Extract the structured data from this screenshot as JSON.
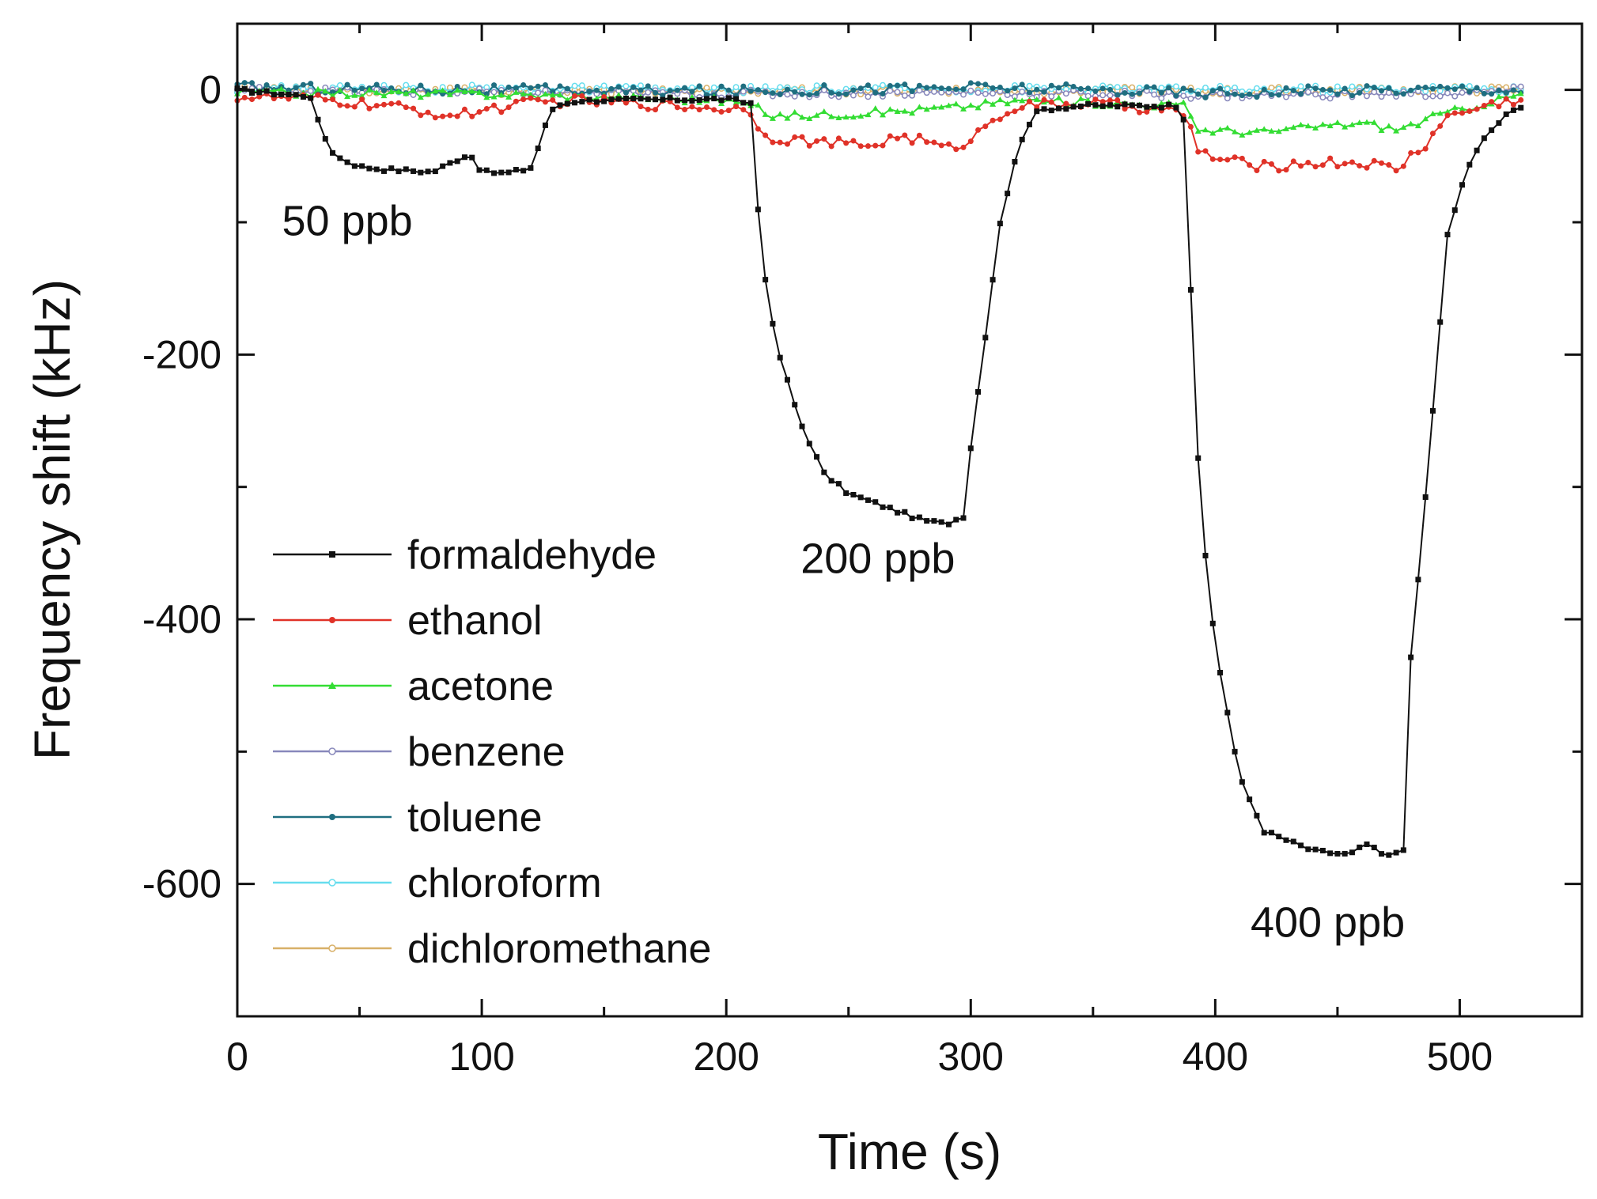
{
  "chart_data": {
    "type": "line",
    "title": "",
    "xlabel": "Time (s)",
    "ylabel": "Frequency shift (kHz)",
    "xlim": [
      0,
      550
    ],
    "ylim": [
      -700,
      50
    ],
    "x_ticks": [
      0,
      100,
      200,
      300,
      400,
      500
    ],
    "x_tick_labels": [
      "0",
      "100",
      "200",
      "300",
      "400",
      "500"
    ],
    "y_ticks": [
      0,
      -200,
      -400,
      -600
    ],
    "y_tick_labels": [
      "0",
      "-200",
      "-400",
      "-600"
    ],
    "grid": false,
    "legend_position": "bottom-left",
    "annotations": [
      {
        "text": "50 ppb",
        "x": 45,
        "y": -110
      },
      {
        "text": "200 ppb",
        "x": 262,
        "y": -365
      },
      {
        "text": "400 ppb",
        "x": 446,
        "y": -640
      }
    ],
    "series": [
      {
        "name": "formaldehyde",
        "color": "#111111",
        "marker": "square",
        "keypoints": [
          [
            0,
            0
          ],
          [
            30,
            -5
          ],
          [
            34,
            -30
          ],
          [
            40,
            -50
          ],
          [
            50,
            -58
          ],
          [
            60,
            -60
          ],
          [
            80,
            -62
          ],
          [
            95,
            -48
          ],
          [
            100,
            -62
          ],
          [
            110,
            -63
          ],
          [
            118,
            -60
          ],
          [
            121,
            -58
          ],
          [
            125,
            -30
          ],
          [
            130,
            -12
          ],
          [
            140,
            -8
          ],
          [
            200,
            -7
          ],
          [
            210,
            -10
          ],
          [
            212,
            -70
          ],
          [
            215,
            -130
          ],
          [
            220,
            -190
          ],
          [
            230,
            -250
          ],
          [
            240,
            -290
          ],
          [
            250,
            -305
          ],
          [
            265,
            -315
          ],
          [
            280,
            -325
          ],
          [
            290,
            -328
          ],
          [
            297,
            -322
          ],
          [
            300,
            -270
          ],
          [
            305,
            -200
          ],
          [
            312,
            -100
          ],
          [
            318,
            -55
          ],
          [
            322,
            -30
          ],
          [
            328,
            -15
          ],
          [
            345,
            -12
          ],
          [
            386,
            -12
          ],
          [
            388,
            -30
          ],
          [
            390,
            -150
          ],
          [
            394,
            -320
          ],
          [
            400,
            -420
          ],
          [
            410,
            -520
          ],
          [
            420,
            -560
          ],
          [
            440,
            -575
          ],
          [
            455,
            -578
          ],
          [
            462,
            -570
          ],
          [
            470,
            -580
          ],
          [
            478,
            -572
          ],
          [
            480,
            -430
          ],
          [
            485,
            -330
          ],
          [
            490,
            -220
          ],
          [
            495,
            -110
          ],
          [
            502,
            -65
          ],
          [
            510,
            -35
          ],
          [
            520,
            -18
          ],
          [
            527,
            -10
          ]
        ]
      },
      {
        "name": "ethanol",
        "color": "#e03228",
        "marker": "circle",
        "keypoints": [
          [
            0,
            -5
          ],
          [
            30,
            -7
          ],
          [
            60,
            -12
          ],
          [
            90,
            -20
          ],
          [
            100,
            -15
          ],
          [
            120,
            -10
          ],
          [
            140,
            -8
          ],
          [
            210,
            -15
          ],
          [
            215,
            -35
          ],
          [
            240,
            -40
          ],
          [
            260,
            -42
          ],
          [
            270,
            -35
          ],
          [
            280,
            -38
          ],
          [
            290,
            -45
          ],
          [
            300,
            -38
          ],
          [
            310,
            -20
          ],
          [
            320,
            -12
          ],
          [
            350,
            -10
          ],
          [
            380,
            -15
          ],
          [
            388,
            -20
          ],
          [
            393,
            -45
          ],
          [
            400,
            -52
          ],
          [
            420,
            -58
          ],
          [
            440,
            -55
          ],
          [
            460,
            -55
          ],
          [
            475,
            -60
          ],
          [
            480,
            -50
          ],
          [
            487,
            -40
          ],
          [
            493,
            -22
          ],
          [
            510,
            -12
          ],
          [
            527,
            -6
          ]
        ]
      },
      {
        "name": "acetone",
        "color": "#33dd33",
        "marker": "triangle",
        "keypoints": [
          [
            0,
            -2
          ],
          [
            100,
            -3
          ],
          [
            200,
            -8
          ],
          [
            210,
            -12
          ],
          [
            220,
            -20
          ],
          [
            250,
            -18
          ],
          [
            280,
            -15
          ],
          [
            300,
            -12
          ],
          [
            320,
            -8
          ],
          [
            388,
            -12
          ],
          [
            393,
            -30
          ],
          [
            420,
            -32
          ],
          [
            440,
            -28
          ],
          [
            460,
            -25
          ],
          [
            475,
            -30
          ],
          [
            490,
            -20
          ],
          [
            510,
            -10
          ],
          [
            527,
            -3
          ]
        ]
      },
      {
        "name": "benzene",
        "color": "#8888bb",
        "marker": "open-circle",
        "keypoints": [
          [
            0,
            0
          ],
          [
            100,
            -2
          ],
          [
            200,
            -3
          ],
          [
            300,
            -2
          ],
          [
            400,
            -4
          ],
          [
            500,
            -3
          ],
          [
            527,
            0
          ]
        ]
      },
      {
        "name": "toluene",
        "color": "#1f6e80",
        "marker": "circle",
        "keypoints": [
          [
            0,
            2
          ],
          [
            100,
            0
          ],
          [
            200,
            -1
          ],
          [
            300,
            2
          ],
          [
            400,
            -2
          ],
          [
            500,
            1
          ],
          [
            527,
            0
          ]
        ]
      },
      {
        "name": "chloroform",
        "color": "#66ddee",
        "marker": "open-circle",
        "keypoints": [
          [
            0,
            1
          ],
          [
            100,
            1
          ],
          [
            200,
            0
          ],
          [
            300,
            1
          ],
          [
            400,
            0
          ],
          [
            500,
            1
          ],
          [
            527,
            0
          ]
        ]
      },
      {
        "name": "dichloromethane",
        "color": "#d8b068",
        "marker": "open-circle",
        "keypoints": [
          [
            0,
            0
          ],
          [
            100,
            -1
          ],
          [
            200,
            -1
          ],
          [
            300,
            0
          ],
          [
            400,
            -1
          ],
          [
            500,
            0
          ],
          [
            527,
            0
          ]
        ]
      }
    ]
  }
}
